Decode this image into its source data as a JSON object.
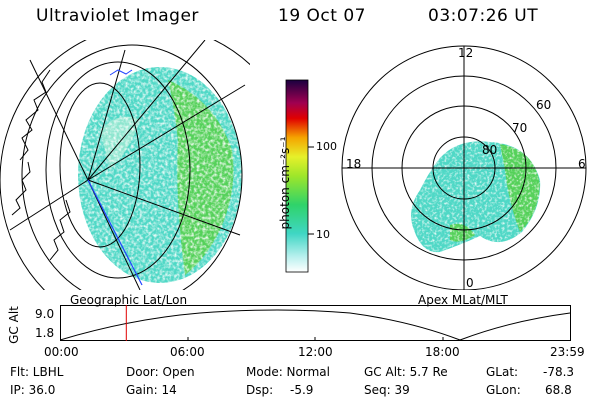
{
  "header": {
    "title": "Ultraviolet Imager",
    "date": "19 Oct 07",
    "time": "03:07:26 UT"
  },
  "colorbar": {
    "label": "photon cm⁻²s⁻¹",
    "ticks": [
      "100",
      "10"
    ]
  },
  "polar": {
    "hour_labels": [
      "12",
      "18",
      "6",
      "0"
    ],
    "lat_labels": [
      "60",
      "70",
      "80"
    ]
  },
  "labels": {
    "left_map": "Geographic Lat/Lon",
    "right_map": "Apex MLat/MLT"
  },
  "altitude_plot": {
    "axis_label": "GC Alt",
    "y_ticks": [
      "9.0",
      "1.8"
    ],
    "x_ticks": [
      "00:00",
      "06:00",
      "12:00",
      "18:00",
      "23:59"
    ],
    "marker_time_hours": 3.12
  },
  "info": {
    "flt": "Flt: LBHL",
    "ip": "IP: 36.0",
    "door": "Door: Open",
    "gain": "Gain: 14",
    "mode": "Mode: Normal",
    "dsp_label": "Dsp:",
    "dsp_value": "-5.9",
    "gc_alt": "GC Alt: 5.7 Re",
    "seq": "Seq: 39",
    "glat_label": "GLat:",
    "glat_value": "-78.3",
    "glon_label": "GLon:",
    "glon_value": "68.8"
  }
}
